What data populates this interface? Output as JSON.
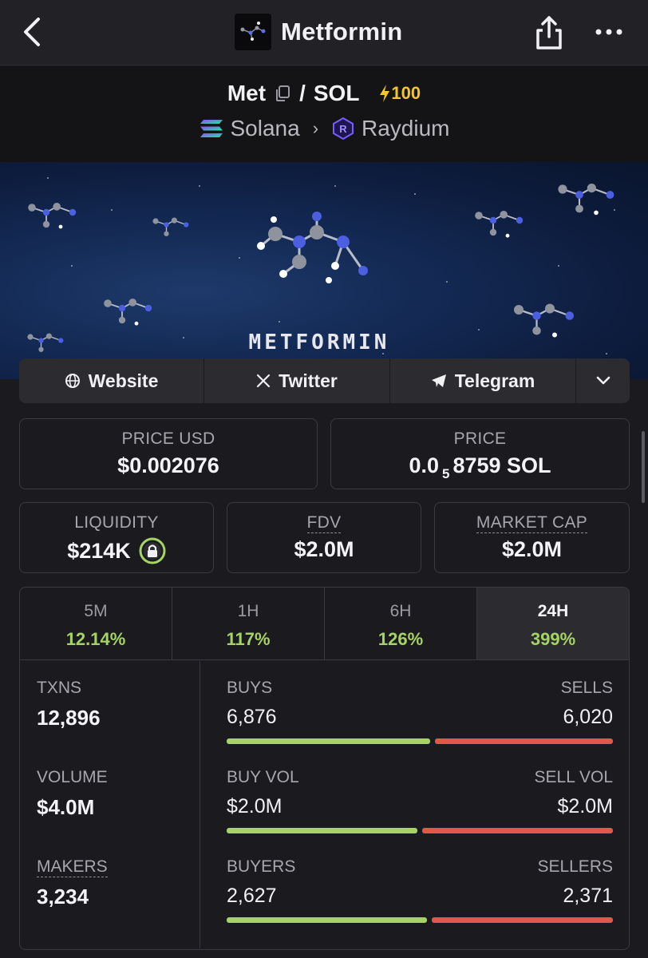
{
  "header": {
    "token_name": "Metformin",
    "icons": {
      "back": "chevron-left-icon",
      "share": "share-icon",
      "more": "more-icon"
    }
  },
  "pair": {
    "base": "Met",
    "separator": "/",
    "quote": "SOL",
    "boost": "100",
    "chain": "Solana",
    "dex": "Raydium"
  },
  "banner": {
    "text": "METFORMIN"
  },
  "links": [
    {
      "label": "Website",
      "icon": "globe-icon"
    },
    {
      "label": "Twitter",
      "icon": "x-icon"
    },
    {
      "label": "Telegram",
      "icon": "telegram-icon"
    }
  ],
  "prices": {
    "price_usd_label": "PRICE USD",
    "price_usd": "$0.002076",
    "price_label": "PRICE",
    "price_prefix": "0.0",
    "price_subscript": "5",
    "price_suffix": "8759 SOL"
  },
  "metrics": {
    "liquidity_label": "LIQUIDITY",
    "liquidity": "$214K",
    "fdv_label": "FDV",
    "fdv": "$2.0M",
    "mcap_label": "MARKET CAP",
    "mcap": "$2.0M"
  },
  "timeframes": [
    {
      "label": "5M",
      "change": "12.14%"
    },
    {
      "label": "1H",
      "change": "117%"
    },
    {
      "label": "6H",
      "change": "126%"
    },
    {
      "label": "24H",
      "change": "399%"
    }
  ],
  "active_timeframe": "24H",
  "stats": {
    "txns_label": "TXNS",
    "txns": "12,896",
    "volume_label": "VOLUME",
    "volume": "$4.0M",
    "makers_label": "MAKERS",
    "makers": "3,234"
  },
  "bars": [
    {
      "left_label": "BUYS",
      "right_label": "SELLS",
      "left_value": "6,876",
      "right_value": "6,020",
      "left_share": 0.533
    },
    {
      "left_label": "BUY VOL",
      "right_label": "SELL VOL",
      "left_value": "$2.0M",
      "right_value": "$2.0M",
      "left_share": 0.5
    },
    {
      "left_label": "BUYERS",
      "right_label": "SELLERS",
      "left_value": "2,627",
      "right_value": "2,371",
      "left_share": 0.526
    }
  ],
  "colors": {
    "positive": "#a5d364",
    "negative": "#e2574c",
    "boost": "#f4c52f"
  }
}
